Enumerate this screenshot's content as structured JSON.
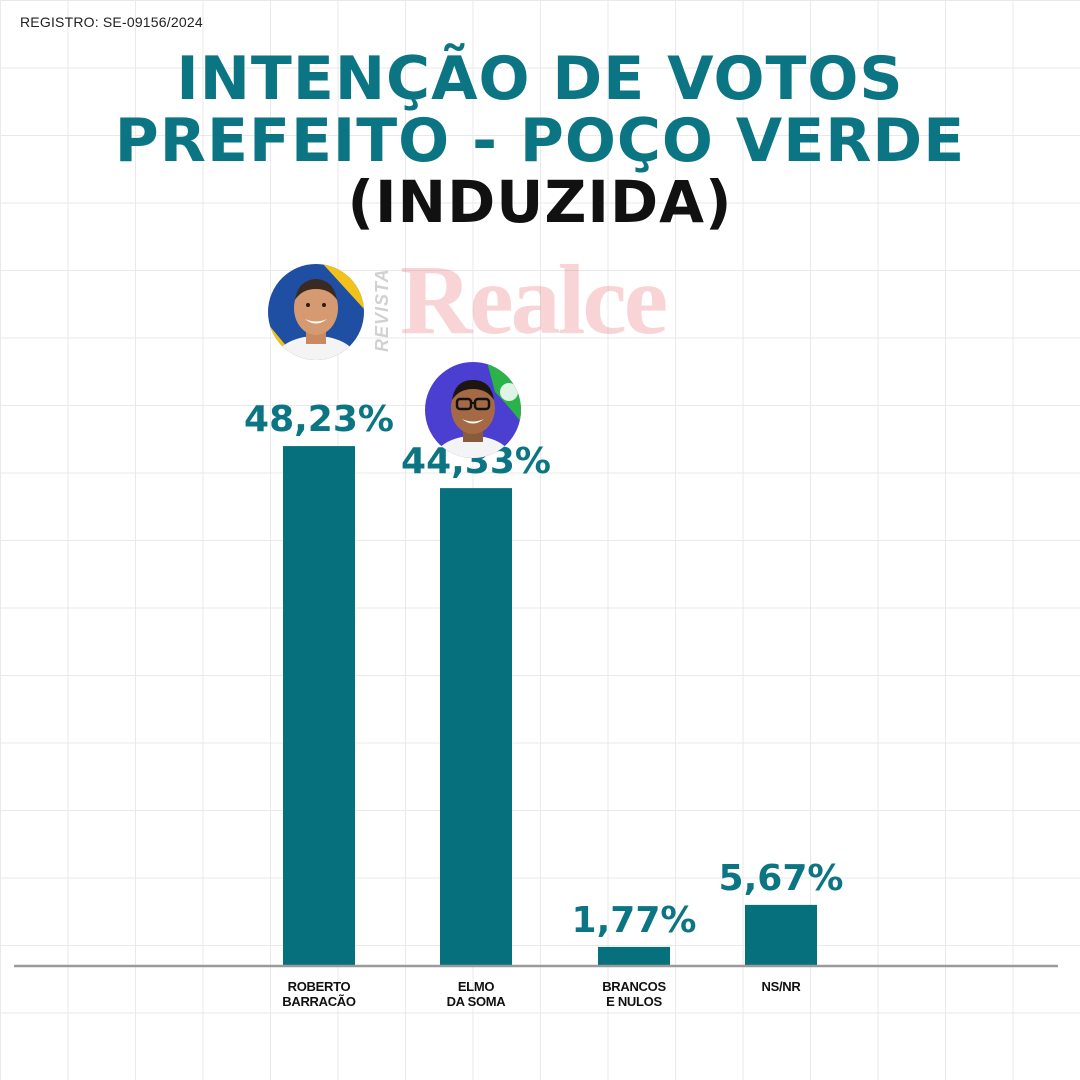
{
  "registro": "REGISTRO: SE-09156/2024",
  "title_line1": "INTENÇÃO DE VOTOS",
  "title_line2": "PREFEITO - POÇO VERDE",
  "title_line3": "(INDUZIDA)",
  "watermark": {
    "small": "REVISTA",
    "brand": "Realce"
  },
  "colors": {
    "bar": "#06707d",
    "title": "#0b7583",
    "axis": "#9a9a9a"
  },
  "chart_data": {
    "type": "bar",
    "categories": [
      [
        "ROBERTO",
        "BARRACÃO"
      ],
      [
        "ELMO",
        "DA SOMA"
      ],
      [
        "BRANCOS",
        "E NULOS"
      ],
      [
        "NS/NR"
      ]
    ],
    "values": [
      48.23,
      44.33,
      1.77,
      5.67
    ],
    "data_labels": [
      "48,23%",
      "44,33%",
      "1,77%",
      "5,67%"
    ],
    "unit": "%",
    "title": "INTENÇÃO DE VOTOS PREFEITO - POÇO VERDE (INDUZIDA)",
    "xlabel": "",
    "ylabel": "",
    "ylim": [
      0,
      50
    ],
    "grid": true,
    "legend": "none"
  },
  "candidates": [
    {
      "name": "ROBERTO BARRACÃO",
      "avatar_icon": "candidate-photo-icon"
    },
    {
      "name": "ELMO DA SOMA",
      "avatar_icon": "candidate-photo-icon"
    }
  ]
}
